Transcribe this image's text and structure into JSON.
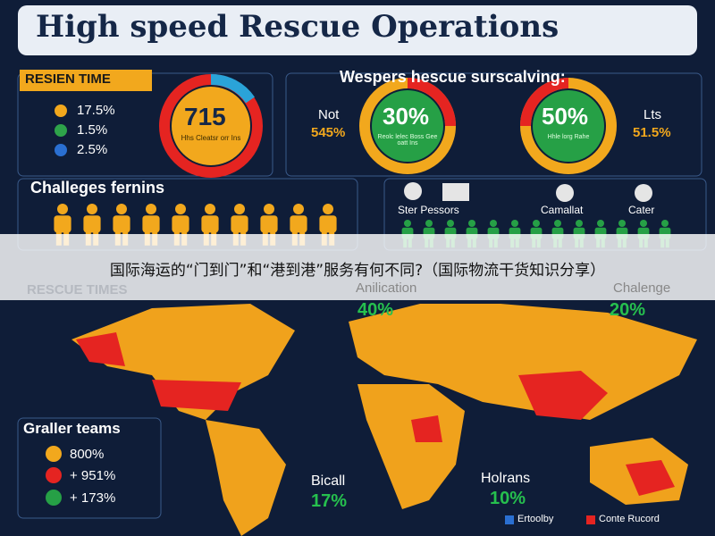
{
  "header": {
    "title": "High speed Rescue Operations"
  },
  "response": {
    "label": "RESIEN TIME",
    "legend": [
      "17.5%",
      "1.5%",
      "2.5%"
    ],
    "donut_value": "715",
    "donut_caption": "Hhs Cleatsr orr Ins"
  },
  "survey": {
    "title": "Wespers hescue surscalving:",
    "left": {
      "label": "Not",
      "value": "545%"
    },
    "donut1": {
      "value": "30%",
      "caption": "Reolc lelec Boss Gee oatt Ins"
    },
    "donut2": {
      "value": "50%",
      "caption": "Hhle lorg Rahe"
    },
    "right": {
      "label": "Lts",
      "value": "51.5%"
    }
  },
  "challenges": {
    "title": "Challeges fernins",
    "icons": [
      "Ster Pessors",
      "Camallat",
      "Cater"
    ]
  },
  "banner": {
    "text": "国际海运的“门到门”和“港到港”服务有何不同?（国际物流干货知识分享）"
  },
  "map": {
    "label": "RESCUE TIMES",
    "stats": [
      {
        "label": "Anilication",
        "value": "40%"
      },
      {
        "label": "Chalenge",
        "value": "20%"
      },
      {
        "label": "Bicall",
        "value": "17%"
      },
      {
        "label": "Holrans",
        "value": "10%"
      }
    ],
    "teams": {
      "title": "Graller teams",
      "items": [
        "800%",
        "+ 951%",
        "+ 173%"
      ]
    },
    "legend": [
      "Ertoolby",
      "Conte Rucord"
    ]
  }
}
